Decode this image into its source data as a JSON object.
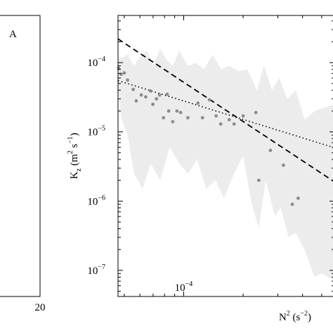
{
  "left_panel": {
    "label": "A",
    "x_tick_label": "20"
  },
  "chart_data": {
    "type": "scatter",
    "xscale": "log",
    "yscale": "log",
    "xlim": [
      4.65e-05,
      0.00058
    ],
    "ylim": [
      4.2e-08,
      0.00048
    ],
    "xlabel_base": "N",
    "xlabel_sup": "2",
    "xlabel_unit_open": " (s",
    "xlabel_unit_sup": "−2",
    "xlabel_unit_close": ")",
    "ylabel_base": "K",
    "ylabel_sub": "z",
    "ylabel_unit_open": " (m",
    "ylabel_unit_sup1": "2",
    "ylabel_unit_mid": " s",
    "ylabel_unit_sup2": "−1",
    "ylabel_unit_close": ")",
    "x_ticks": [
      {
        "value": 0.0001,
        "base": "10",
        "exp": "−4"
      }
    ],
    "y_ticks": [
      {
        "value": 0.0001,
        "base": "10",
        "exp": "−4"
      },
      {
        "value": 1e-05,
        "base": "10",
        "exp": "−5"
      },
      {
        "value": 1e-06,
        "base": "10",
        "exp": "−6"
      },
      {
        "value": 1e-07,
        "base": "10",
        "exp": "−7"
      }
    ],
    "points": [
      [
        4.68e-05,
        8.3e-05
      ],
      [
        4.82e-05,
        6.8e-05
      ],
      [
        5e-05,
        7.1e-05
      ],
      [
        5.2e-05,
        5.6e-05
      ],
      [
        5.55e-05,
        4.1e-05
      ],
      [
        5.75e-05,
        2.8e-05
      ],
      [
        6.1e-05,
        3.4e-05
      ],
      [
        6.42e-05,
        3.2e-05
      ],
      [
        6.8e-05,
        3.9e-05
      ],
      [
        6.98e-05,
        2.5e-05
      ],
      [
        7.28e-05,
        3e-05
      ],
      [
        7.55e-05,
        3.4e-05
      ],
      [
        7.9e-05,
        1.6e-05
      ],
      [
        8.25e-05,
        3.5e-05
      ],
      [
        8.4e-05,
        2e-05
      ],
      [
        8.8e-05,
        1.4e-05
      ],
      [
        9.25e-05,
        2e-05
      ],
      [
        9.65e-05,
        1.9e-05
      ],
      [
        0.000105,
        1.6e-05
      ],
      [
        0.000118,
        2.6e-05
      ],
      [
        0.0001245,
        1.6e-05
      ],
      [
        0.000135,
        2.9e-05
      ],
      [
        0.000146,
        1.7e-05
      ],
      [
        0.000154,
        1.3e-05
      ],
      [
        0.00017,
        1.5e-05
      ],
      [
        0.00018,
        1.3e-05
      ],
      [
        0.0002,
        1.7e-05
      ],
      [
        0.000232,
        1.9e-05
      ],
      [
        0.00024,
        2e-06
      ],
      [
        0.000275,
        5.4e-06
      ],
      [
        0.00032,
        3.3e-06
      ],
      [
        0.000355,
        9e-07
      ],
      [
        0.00038,
        1.1e-06
      ]
    ],
    "band": {
      "upper": [
        [
          4.65e-05,
          0.00011
        ],
        [
          5.2e-05,
          0.00013
        ],
        [
          5.6e-05,
          9e-05
        ],
        [
          6e-05,
          0.00012
        ],
        [
          6.5e-05,
          0.00015
        ],
        [
          7e-05,
          9e-05
        ],
        [
          7.6e-05,
          0.00016
        ],
        [
          8.2e-05,
          0.00011
        ],
        [
          8.8e-05,
          9e-05
        ],
        [
          9.5e-05,
          0.00015
        ],
        [
          0.000105,
          9e-05
        ],
        [
          0.000115,
          0.0001
        ],
        [
          0.000127,
          8e-05
        ],
        [
          0.00014,
          0.00013
        ],
        [
          0.000155,
          8e-05
        ],
        [
          0.00017,
          9e-05
        ],
        [
          0.00019,
          7.5e-05
        ],
        [
          0.00021,
          8e-05
        ],
        [
          0.000235,
          4e-05
        ],
        [
          0.000255,
          9e-05
        ],
        [
          0.00028,
          4e-05
        ],
        [
          0.000305,
          6e-05
        ],
        [
          0.000335,
          3e-05
        ],
        [
          0.00037,
          4e-05
        ],
        [
          0.00041,
          1.5e-05
        ],
        [
          0.00046,
          2e-05
        ],
        [
          0.00058,
          2.5e-05
        ]
      ],
      "lower": [
        [
          0.00058,
          7e-08
        ],
        [
          0.0005,
          9e-08
        ],
        [
          0.00046,
          8e-08
        ],
        [
          0.00041,
          2e-07
        ],
        [
          0.00037,
          3.5e-07
        ],
        [
          0.00034,
          3e-07
        ],
        [
          0.00031,
          8e-07
        ],
        [
          0.00029,
          6e-07
        ],
        [
          0.00026,
          2e-06
        ],
        [
          0.00024,
          4e-07
        ],
        [
          0.00022,
          1e-06
        ],
        [
          0.0002,
          4.5e-06
        ],
        [
          0.00018,
          2.5e-06
        ],
        [
          0.00016,
          1.1e-06
        ],
        [
          0.000145,
          2e-06
        ],
        [
          0.00013,
          1.5e-06
        ],
        [
          0.000117,
          4e-06
        ],
        [
          0.000105,
          2.5e-06
        ],
        [
          9.5e-05,
          3.5e-06
        ],
        [
          8.5e-05,
          6e-06
        ],
        [
          7.6e-05,
          2e-06
        ],
        [
          6.8e-05,
          3.5e-06
        ],
        [
          6.2e-05,
          1.5e-06
        ],
        [
          5.6e-05,
          2.5e-06
        ],
        [
          5.2e-05,
          9e-06
        ],
        [
          4.85e-05,
          1.5e-05
        ],
        [
          4.65e-05,
          4.5e-05
        ]
      ]
    },
    "fits": [
      {
        "style": "dashed",
        "points": [
          [
            4.65e-05,
            0.00022
          ],
          [
            0.00058,
            1.9e-06
          ]
        ]
      },
      {
        "style": "dotted",
        "points": [
          [
            4.65e-05,
            5.5e-05
          ],
          [
            0.00058,
            5.9e-06
          ]
        ]
      }
    ],
    "colors": {
      "points": "#8c8c8c",
      "band": "#ececec",
      "lines": "#000000"
    },
    "grid": false,
    "legend": "none"
  }
}
